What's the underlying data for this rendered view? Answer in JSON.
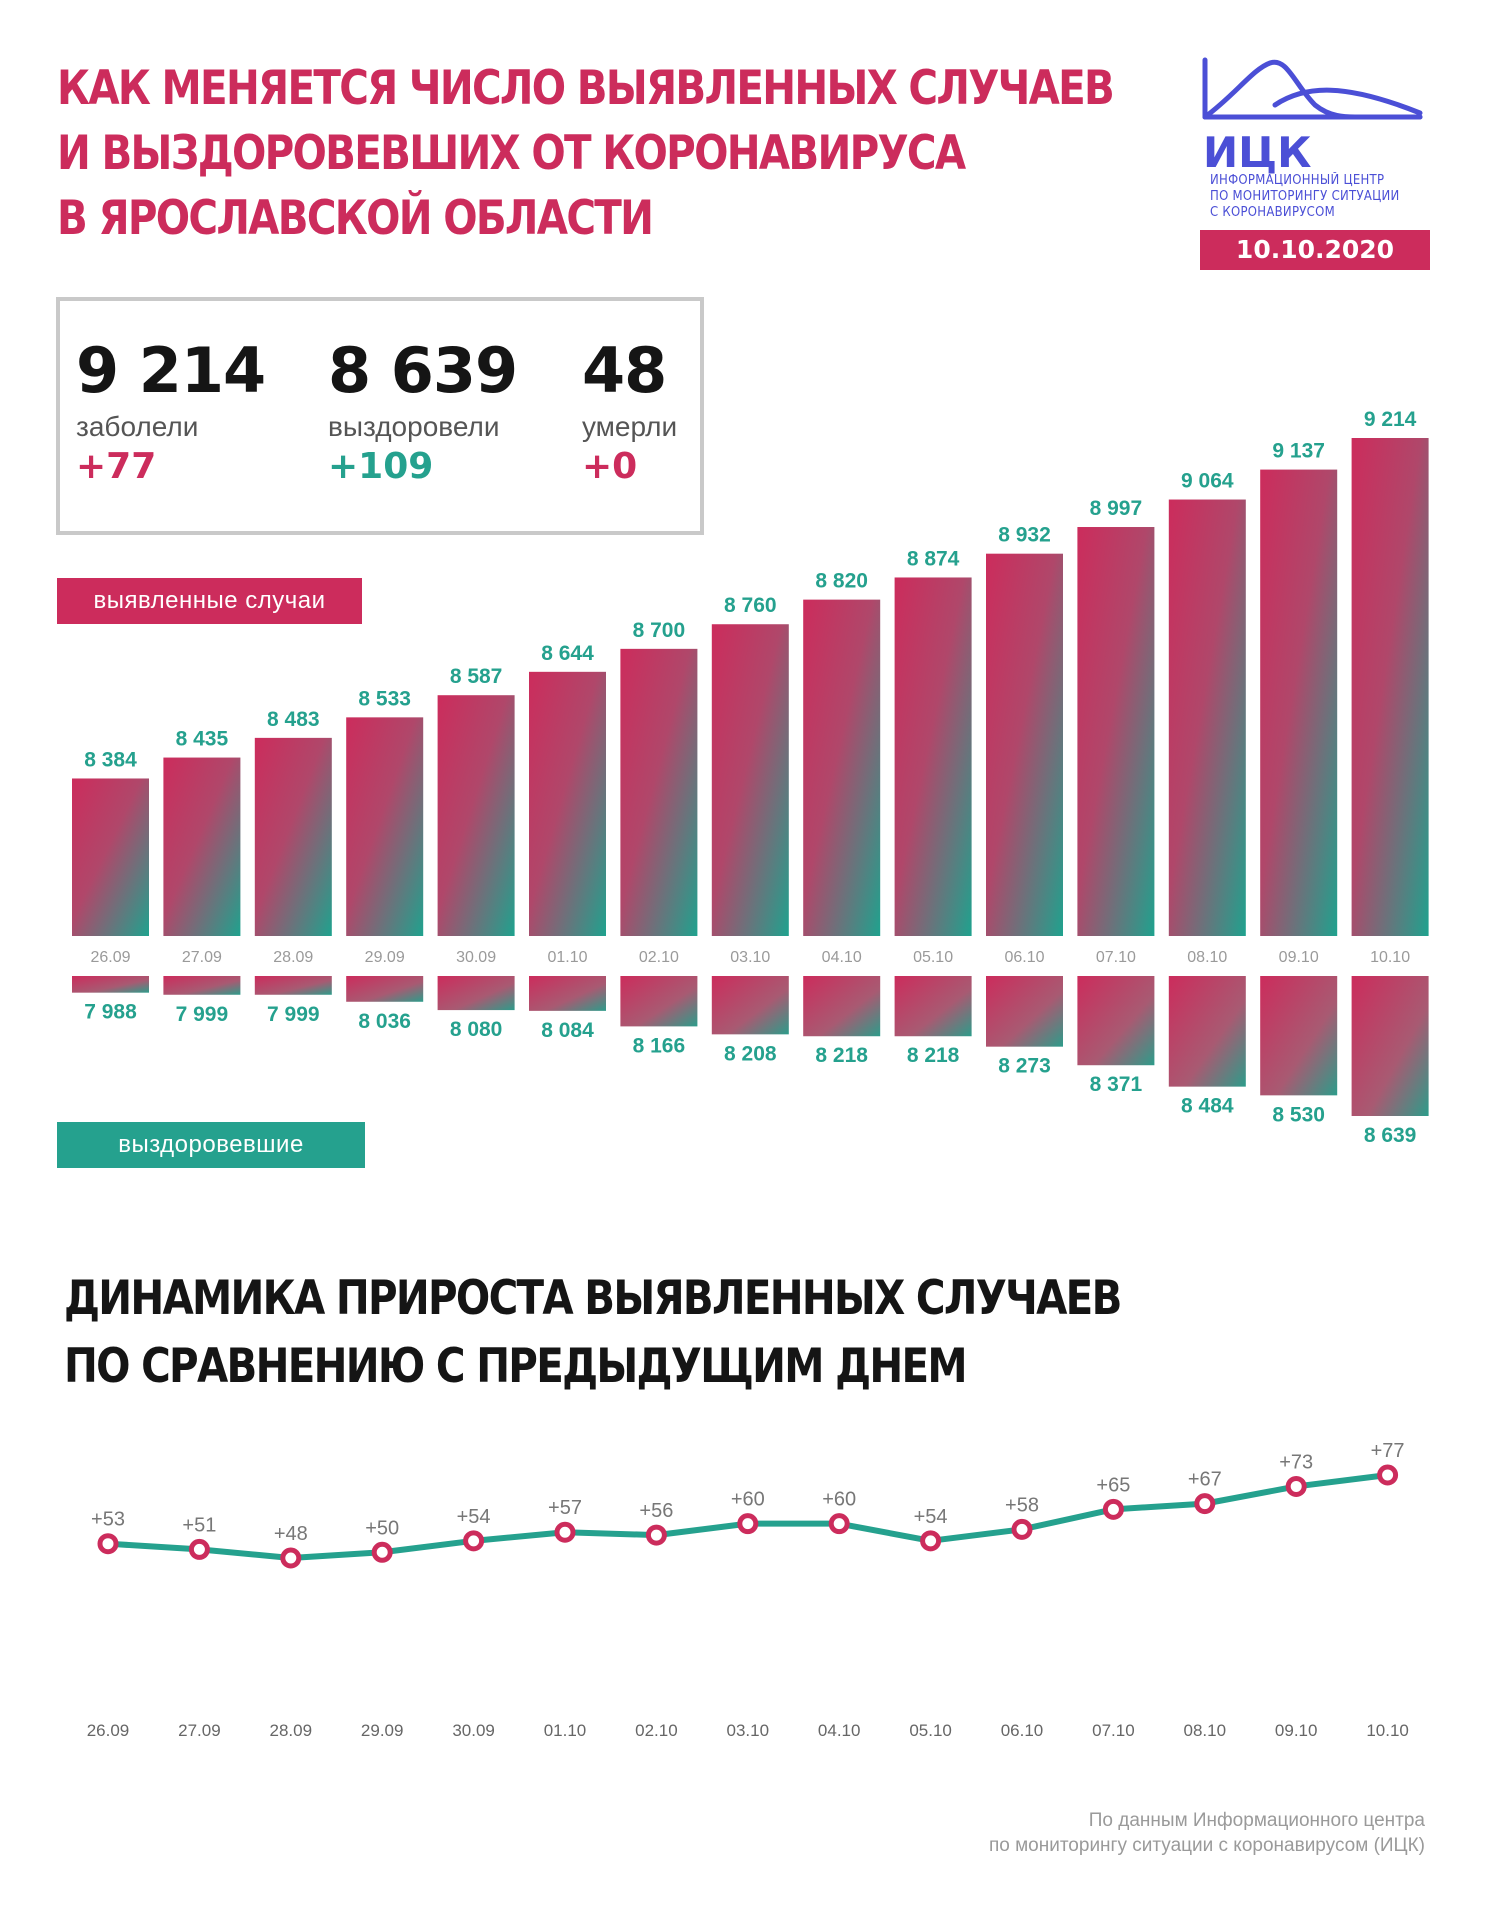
{
  "header": {
    "title_lines": [
      "КАК МЕНЯЕТСЯ ЧИСЛО ВЫЯВЛЕННЫХ СЛУЧАЕВ",
      "И ВЫЗДОРОВЕВШИХ ОТ КОРОНАВИРУСА",
      "В ЯРОСЛАВСКОЙ ОБЛАСТИ"
    ],
    "logo_text": "ИЦК",
    "logo_sub_lines": [
      "ИНФОРМАЦИОННЫЙ ЦЕНТР",
      "ПО МОНИТОРИНГУ СИТУАЦИИ",
      "С КОРОНАВИРУСОМ"
    ],
    "date": "10.10.2020"
  },
  "stats": [
    {
      "value": "9 214",
      "label": "заболели",
      "delta": "+77",
      "color": "#cc2c5c"
    },
    {
      "value": "8 639",
      "label": "выздоровели",
      "delta": "+109",
      "color": "#25a18e"
    },
    {
      "value": "48",
      "label": "умерли",
      "delta": "+0",
      "color": "#cc2c5c"
    }
  ],
  "legend": {
    "cases": "выявленные случаи",
    "recovered": "выздоровевшие"
  },
  "section2_title_lines": [
    "ДИНАМИКА ПРИРОСТА ВЫЯВЛЕННЫХ СЛУЧАЕВ",
    "ПО СРАВНЕНИЮ С ПРЕДЫДУЩИМ ДНЕМ"
  ],
  "source_lines": [
    "По данным Информационного центра",
    "по мониторингу ситуации с коронавирусом (ИЦК)"
  ],
  "colors": {
    "accent_red": "#cc2c5c",
    "accent_teal": "#25a18e",
    "logo_blue": "#4b4fd6"
  },
  "chart_data": [
    {
      "type": "bar",
      "categories": [
        "26.09",
        "27.09",
        "28.09",
        "29.09",
        "30.09",
        "01.10",
        "02.10",
        "03.10",
        "04.10",
        "05.10",
        "06.10",
        "07.10",
        "08.10",
        "09.10",
        "10.10"
      ],
      "series": [
        {
          "name": "выявленные случаи",
          "values": [
            8384,
            8435,
            8483,
            8533,
            8587,
            8644,
            8700,
            8760,
            8820,
            8874,
            8932,
            8997,
            9064,
            9137,
            9214
          ],
          "labels": [
            "8 384",
            "8 435",
            "8 483",
            "8 533",
            "8 587",
            "8 644",
            "8 700",
            "8 760",
            "8 820",
            "8 874",
            "8 932",
            "8 997",
            "9 064",
            "9 137",
            "9 214"
          ]
        },
        {
          "name": "выздоровевшие",
          "values": [
            7988,
            7999,
            7999,
            8036,
            8080,
            8084,
            8166,
            8208,
            8218,
            8218,
            8273,
            8371,
            8484,
            8530,
            8639
          ],
          "labels": [
            "7 988",
            "7 999",
            "7 999",
            "8 036",
            "8 080",
            "8 084",
            "8 166",
            "8 208",
            "8 218",
            "8 218",
            "8 273",
            "8 371",
            "8 484",
            "8 530",
            "8 639"
          ]
        }
      ],
      "grid": false
    },
    {
      "type": "line",
      "categories": [
        "26.09",
        "27.09",
        "28.09",
        "29.09",
        "30.09",
        "01.10",
        "02.10",
        "03.10",
        "04.10",
        "05.10",
        "06.10",
        "07.10",
        "08.10",
        "09.10",
        "10.10"
      ],
      "values": [
        53,
        51,
        48,
        50,
        54,
        57,
        56,
        60,
        60,
        54,
        58,
        65,
        67,
        73,
        77
      ],
      "labels": [
        "+53",
        "+51",
        "+48",
        "+50",
        "+54",
        "+57",
        "+56",
        "+60",
        "+60",
        "+54",
        "+58",
        "+65",
        "+67",
        "+73",
        "+77"
      ],
      "grid": false
    }
  ]
}
